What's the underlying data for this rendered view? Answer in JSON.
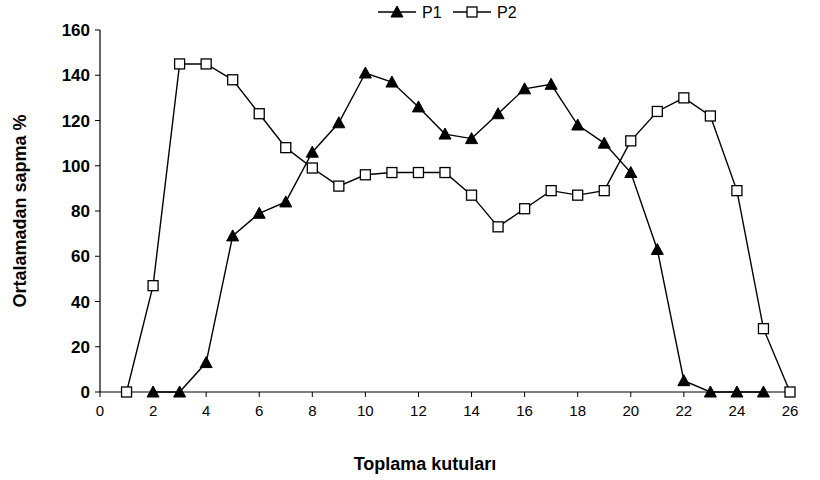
{
  "chart_data": {
    "type": "line",
    "x_label": "Toplama kutuları",
    "y_label": "Ortalamadan sapma %",
    "x": [
      1,
      2,
      3,
      4,
      5,
      6,
      7,
      8,
      9,
      10,
      11,
      12,
      13,
      14,
      15,
      16,
      17,
      18,
      19,
      20,
      21,
      22,
      23,
      24,
      25,
      26
    ],
    "series": [
      {
        "name": "P1",
        "color": "#000000",
        "marker": "triangle",
        "line_style": "solid",
        "values": [
          null,
          0,
          0,
          13,
          69,
          79,
          84,
          106,
          119,
          141,
          137,
          126,
          114,
          112,
          123,
          134,
          136,
          118,
          110,
          97,
          63,
          5,
          0,
          0,
          0,
          null
        ]
      },
      {
        "name": "P2",
        "color": "#000000",
        "marker": "open-square",
        "line_style": "solid",
        "values": [
          0,
          47,
          145,
          145,
          138,
          123,
          108,
          99,
          91,
          96,
          97,
          97,
          97,
          87,
          73,
          81,
          89,
          87,
          89,
          111,
          124,
          130,
          122,
          89,
          28,
          0
        ]
      }
    ],
    "xlim": [
      0,
      26
    ],
    "xticks": [
      0,
      2,
      4,
      6,
      8,
      10,
      12,
      14,
      16,
      18,
      20,
      22,
      24,
      26
    ],
    "ylim": [
      0,
      160
    ],
    "yticks": [
      0,
      20,
      40,
      60,
      80,
      100,
      120,
      140,
      160
    ],
    "grid": false,
    "legend": "top"
  }
}
